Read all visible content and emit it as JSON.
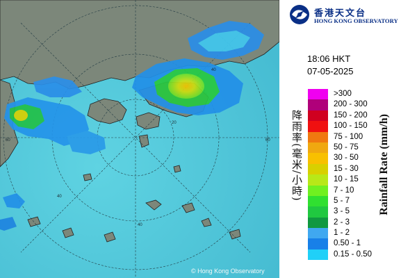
{
  "org": {
    "name_zh": "香港天文台",
    "name_en": "HONG KONG OBSERVATORY",
    "emblem_icon": "hko-emblem-icon"
  },
  "timestamp": {
    "time": "18:06 HKT",
    "date": "07-05-2025"
  },
  "copyright": "© Hong Kong Observatory",
  "legend": {
    "title_zh": "降雨率(毫米/小時)",
    "title_en": "Rainfall Rate (mm/h)",
    "items": [
      {
        "label": ">300",
        "color": "#f000f0"
      },
      {
        "label": "200 - 300",
        "color": "#b0007a"
      },
      {
        "label": "150 - 200",
        "color": "#d00020"
      },
      {
        "label": "100 - 150",
        "color": "#f01010"
      },
      {
        "label": "75 - 100",
        "color": "#f07810"
      },
      {
        "label": "50 - 75",
        "color": "#f0a810"
      },
      {
        "label": "30 - 50",
        "color": "#f8c000"
      },
      {
        "label": "15 - 30",
        "color": "#d8d000"
      },
      {
        "label": "10 - 15",
        "color": "#b8e818"
      },
      {
        "label": "7 - 10",
        "color": "#70f020"
      },
      {
        "label": "5 - 7",
        "color": "#30e030"
      },
      {
        "label": "3 - 5",
        "color": "#20c840"
      },
      {
        "label": "2 - 3",
        "color": "#109840"
      },
      {
        "label": "1 - 2",
        "color": "#40a8f0"
      },
      {
        "label": "0.50 - 1",
        "color": "#1880e8"
      },
      {
        "label": "0.15 - 0.50",
        "color": "#20d0f8"
      }
    ]
  },
  "map": {
    "range_ring_labels": [
      "20",
      "40",
      "60",
      "40",
      "60",
      "40"
    ],
    "sea_color": "#52c9da",
    "land_color": "#7a8578"
  }
}
